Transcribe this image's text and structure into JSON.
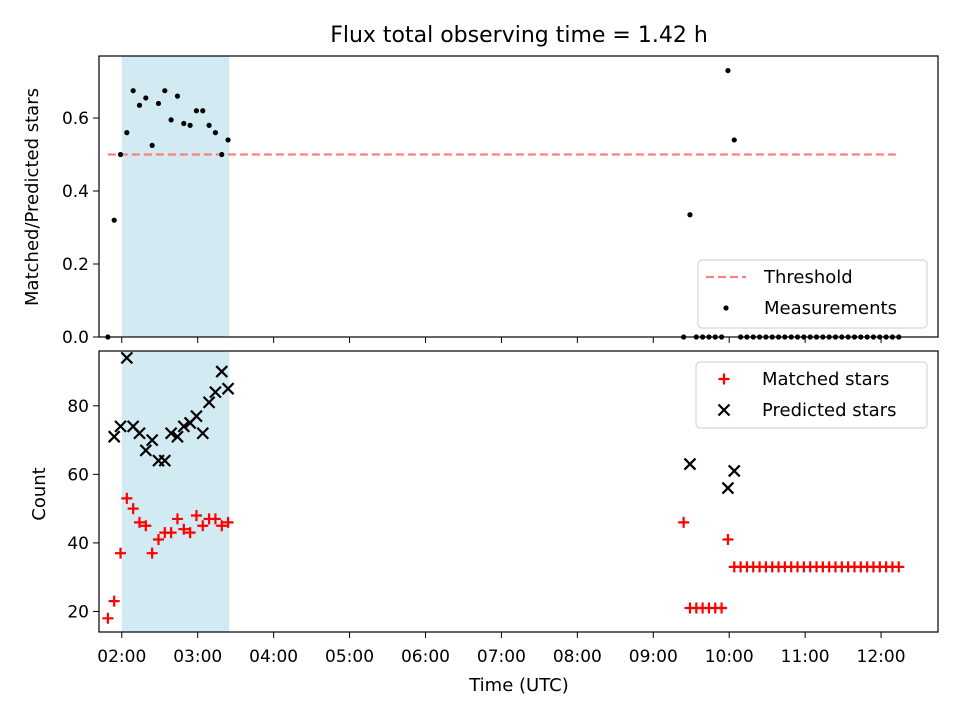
{
  "chart_data": {
    "title": "Flux total observing time = 1.42 h",
    "xlabel": "Time (UTC)",
    "xticks": [
      "02:00",
      "03:00",
      "04:00",
      "05:00",
      "06:00",
      "07:00",
      "08:00",
      "09:00",
      "10:00",
      "11:00",
      "12:00"
    ],
    "xlim": [
      "01:42",
      "12:45"
    ],
    "shaded_interval": [
      "02:00",
      "03:25"
    ],
    "shade_color": "#add8e6",
    "panels": [
      {
        "type": "scatter",
        "ylabel": "Matched/Predicted stars",
        "ylim": [
          0,
          0.77
        ],
        "yticks": [
          "0.0",
          "0.2",
          "0.4",
          "0.6"
        ],
        "threshold": {
          "name": "Threshold",
          "value": 0.5,
          "x_range": [
            "01:49",
            "12:12"
          ],
          "color": "#ff7f7f"
        },
        "legend": {
          "position": "lower-right",
          "entries": [
            "Threshold",
            "Measurements"
          ]
        },
        "series": [
          {
            "name": "Measurements",
            "color": "#000000",
            "marker": "dot",
            "points": [
              [
                "01:49",
                0.0
              ],
              [
                "01:54",
                0.32
              ],
              [
                "01:59",
                0.5
              ],
              [
                "02:04",
                0.56
              ],
              [
                "02:09",
                0.675
              ],
              [
                "02:14",
                0.635
              ],
              [
                "02:19",
                0.655
              ],
              [
                "02:24",
                0.525
              ],
              [
                "02:29",
                0.64
              ],
              [
                "02:34",
                0.675
              ],
              [
                "02:39",
                0.595
              ],
              [
                "02:44",
                0.66
              ],
              [
                "02:49",
                0.585
              ],
              [
                "02:54",
                0.58
              ],
              [
                "02:59",
                0.62
              ],
              [
                "03:04",
                0.62
              ],
              [
                "03:09",
                0.58
              ],
              [
                "03:14",
                0.56
              ],
              [
                "03:19",
                0.5
              ],
              [
                "03:24",
                0.54
              ],
              [
                "09:24",
                0.0
              ],
              [
                "09:29",
                0.335
              ],
              [
                "09:34",
                0.0
              ],
              [
                "09:39",
                0.0
              ],
              [
                "09:44",
                0.0
              ],
              [
                "09:49",
                0.0
              ],
              [
                "09:54",
                0.0
              ],
              [
                "09:59",
                0.73
              ],
              [
                "10:04",
                0.54
              ],
              [
                "10:09",
                0.0
              ],
              [
                "10:14",
                0.0
              ],
              [
                "10:19",
                0.0
              ],
              [
                "10:24",
                0.0
              ],
              [
                "10:29",
                0.0
              ],
              [
                "10:34",
                0.0
              ],
              [
                "10:39",
                0.0
              ],
              [
                "10:44",
                0.0
              ],
              [
                "10:49",
                0.0
              ],
              [
                "10:54",
                0.0
              ],
              [
                "10:59",
                0.0
              ],
              [
                "11:04",
                0.0
              ],
              [
                "11:09",
                0.0
              ],
              [
                "11:14",
                0.0
              ],
              [
                "11:19",
                0.0
              ],
              [
                "11:24",
                0.0
              ],
              [
                "11:29",
                0.0
              ],
              [
                "11:34",
                0.0
              ],
              [
                "11:39",
                0.0
              ],
              [
                "11:44",
                0.0
              ],
              [
                "11:49",
                0.0
              ],
              [
                "11:54",
                0.0
              ],
              [
                "11:59",
                0.0
              ],
              [
                "12:04",
                0.0
              ],
              [
                "12:09",
                0.0
              ],
              [
                "12:14",
                0.0
              ]
            ]
          }
        ]
      },
      {
        "type": "scatter",
        "ylabel": "Count",
        "ylim": [
          14,
          96
        ],
        "yticks": [
          "20",
          "40",
          "60",
          "80"
        ],
        "legend": {
          "position": "top-right",
          "entries": [
            "Matched stars",
            "Predicted stars"
          ]
        },
        "series": [
          {
            "name": "Matched stars",
            "color": "#ff0000",
            "marker": "plus",
            "points": [
              [
                "01:49",
                18
              ],
              [
                "01:54",
                23
              ],
              [
                "01:59",
                37
              ],
              [
                "02:04",
                53
              ],
              [
                "02:09",
                50
              ],
              [
                "02:14",
                46
              ],
              [
                "02:19",
                45
              ],
              [
                "02:24",
                37
              ],
              [
                "02:29",
                41
              ],
              [
                "02:34",
                43
              ],
              [
                "02:39",
                43
              ],
              [
                "02:44",
                47
              ],
              [
                "02:49",
                44
              ],
              [
                "02:54",
                43
              ],
              [
                "02:59",
                48
              ],
              [
                "03:04",
                45
              ],
              [
                "03:09",
                47
              ],
              [
                "03:14",
                47
              ],
              [
                "03:19",
                45
              ],
              [
                "03:24",
                46
              ],
              [
                "09:24",
                46
              ],
              [
                "09:29",
                21
              ],
              [
                "09:34",
                21
              ],
              [
                "09:39",
                21
              ],
              [
                "09:44",
                21
              ],
              [
                "09:49",
                21
              ],
              [
                "09:54",
                21
              ],
              [
                "09:59",
                41
              ],
              [
                "10:04",
                33
              ],
              [
                "10:09",
                33
              ],
              [
                "10:14",
                33
              ],
              [
                "10:19",
                33
              ],
              [
                "10:24",
                33
              ],
              [
                "10:29",
                33
              ],
              [
                "10:34",
                33
              ],
              [
                "10:39",
                33
              ],
              [
                "10:44",
                33
              ],
              [
                "10:49",
                33
              ],
              [
                "10:54",
                33
              ],
              [
                "10:59",
                33
              ],
              [
                "11:04",
                33
              ],
              [
                "11:09",
                33
              ],
              [
                "11:14",
                33
              ],
              [
                "11:19",
                33
              ],
              [
                "11:24",
                33
              ],
              [
                "11:29",
                33
              ],
              [
                "11:34",
                33
              ],
              [
                "11:39",
                33
              ],
              [
                "11:44",
                33
              ],
              [
                "11:49",
                33
              ],
              [
                "11:54",
                33
              ],
              [
                "11:59",
                33
              ],
              [
                "12:04",
                33
              ],
              [
                "12:09",
                33
              ],
              [
                "12:14",
                33
              ]
            ]
          },
          {
            "name": "Predicted stars",
            "color": "#000000",
            "marker": "x",
            "points": [
              [
                "01:54",
                71
              ],
              [
                "01:59",
                74
              ],
              [
                "02:04",
                94
              ],
              [
                "02:09",
                74
              ],
              [
                "02:14",
                72
              ],
              [
                "02:19",
                67
              ],
              [
                "02:24",
                70
              ],
              [
                "02:29",
                64
              ],
              [
                "02:34",
                64
              ],
              [
                "02:39",
                72
              ],
              [
                "02:44",
                71
              ],
              [
                "02:49",
                74
              ],
              [
                "02:54",
                75
              ],
              [
                "02:59",
                77
              ],
              [
                "03:04",
                72
              ],
              [
                "03:09",
                81
              ],
              [
                "03:14",
                84
              ],
              [
                "03:19",
                90
              ],
              [
                "03:24",
                85
              ],
              [
                "09:29",
                63
              ],
              [
                "09:59",
                56
              ],
              [
                "10:04",
                61
              ]
            ]
          }
        ]
      }
    ]
  }
}
